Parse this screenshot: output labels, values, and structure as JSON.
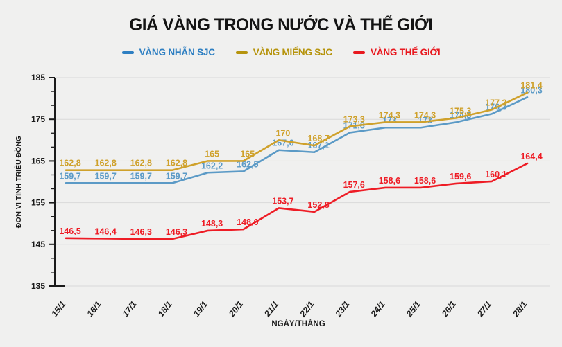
{
  "title": "GIÁ VÀNG TRONG NƯỚC VÀ THẾ GIỚI",
  "colors": {
    "background": "#f0f0ef",
    "grid": "#d9d9d9",
    "axis": "#1a1a1a",
    "tick_text": "#1a1a1a"
  },
  "chart_data": {
    "type": "line",
    "title": "GIÁ VÀNG TRONG NƯỚC VÀ THẾ GIỚI",
    "xlabel": "NGÀY/THÁNG",
    "ylabel": "ĐƠN VỊ TÍNH TRIỆU ĐỒNG",
    "x_categories": [
      "15/1",
      "16/1",
      "17/1",
      "18/1",
      "19/1",
      "20/1",
      "21/1",
      "22/1",
      "23/1",
      "24/1",
      "25/1",
      "26/1",
      "27/1",
      "28/1"
    ],
    "ylim": [
      135,
      185
    ],
    "yticks": [
      135,
      145,
      155,
      165,
      175,
      185
    ],
    "grid": true,
    "legend_position": "top",
    "series": [
      {
        "name": "VÀNG NHẪN SJC",
        "color": "#5b9ac6",
        "legend_color": "#2e7fc2",
        "values": [
          159.7,
          159.7,
          159.7,
          159.7,
          162.2,
          162.5,
          167.6,
          167.1,
          171.8,
          173,
          173,
          174.3,
          176.3,
          180.3
        ],
        "labels": [
          "159,7",
          "159,7",
          "159,7",
          "159,7",
          "162,2",
          "162,5",
          "167,6",
          "167,1",
          "171,8",
          "173",
          "173",
          "174,3",
          "176,3",
          "180,3"
        ]
      },
      {
        "name": "VÀNG MIẾNG SJC",
        "color": "#cfa12b",
        "legend_color": "#b6940d",
        "values": [
          162.8,
          162.8,
          162.8,
          162.8,
          165,
          165,
          170,
          168.7,
          173.3,
          174.3,
          174.3,
          175.3,
          177.3,
          181.4
        ],
        "labels": [
          "162,8",
          "162,8",
          "162,8",
          "162,8",
          "165",
          "165",
          "170",
          "168,7",
          "173,3",
          "174,3",
          "174,3",
          "175,3",
          "177,3",
          "181,4"
        ]
      },
      {
        "name": "VÀNG THẾ GIỚI",
        "color": "#ee1c25",
        "legend_color": "#e8191f",
        "values": [
          146.5,
          146.4,
          146.3,
          146.3,
          148.3,
          148.6,
          153.7,
          152.8,
          157.6,
          158.6,
          158.6,
          159.6,
          160.1,
          164.4
        ],
        "labels": [
          "146,5",
          "146,4",
          "146,3",
          "146,3",
          "148,3",
          "148,6",
          "153,7",
          "152,8",
          "157,6",
          "158,6",
          "158,6",
          "159,6",
          "160,1",
          "164,4"
        ]
      }
    ]
  }
}
